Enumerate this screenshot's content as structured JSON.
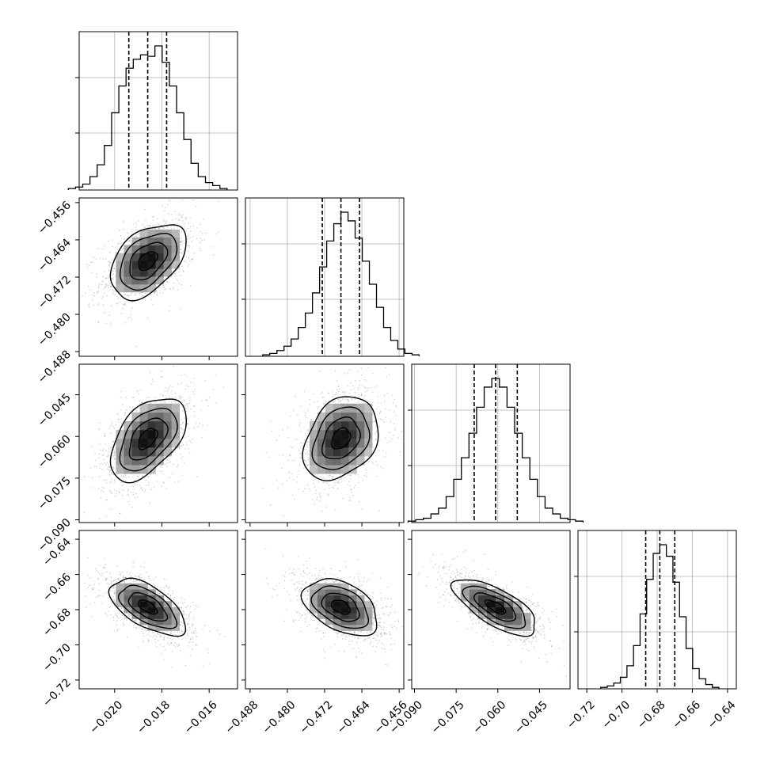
{
  "chart_data": {
    "type": "corner",
    "n_params": 4,
    "parameters": [
      {
        "range": [
          -0.0215,
          -0.0148
        ],
        "ticks": [
          -0.02,
          -0.018,
          -0.016
        ],
        "tick_labels": [
          "−0.020",
          "−0.018",
          "−0.016"
        ],
        "median": -0.0186,
        "quantiles": [
          -0.0194,
          -0.0178
        ],
        "sigma": 0.0008,
        "histogram": [
          1,
          2,
          4,
          9,
          17,
          30,
          52,
          70,
          82,
          88,
          91,
          90,
          97,
          86,
          70,
          52,
          34,
          18,
          9,
          5,
          3,
          1
        ]
      },
      {
        "range": [
          -0.489,
          -0.455
        ],
        "ticks": [
          -0.488,
          -0.48,
          -0.472,
          -0.464,
          -0.456
        ],
        "tick_labels": [
          "−0.488",
          "−0.480",
          "−0.472",
          "−0.464",
          "−0.456"
        ],
        "median": -0.4685,
        "quantiles": [
          -0.4725,
          -0.4645
        ],
        "sigma": 0.004,
        "histogram": [
          1,
          2,
          4,
          7,
          12,
          20,
          30,
          44,
          62,
          80,
          92,
          100,
          94,
          82,
          66,
          50,
          34,
          20,
          11,
          5,
          2,
          1
        ]
      },
      {
        "range": [
          -0.091,
          -0.034
        ],
        "ticks": [
          -0.09,
          -0.075,
          -0.06,
          -0.045
        ],
        "tick_labels": [
          "−0.090",
          "−0.075",
          "−0.060",
          "−0.045"
        ],
        "ytick_labels": [
          "−0.090",
          "−0.075",
          "−0.060",
          "−0.045"
        ],
        "median": -0.0608,
        "quantiles": [
          -0.0685,
          -0.053
        ],
        "sigma": 0.0075,
        "histogram": [
          1,
          2,
          3,
          6,
          10,
          18,
          30,
          45,
          62,
          80,
          94,
          100,
          94,
          80,
          62,
          45,
          30,
          18,
          10,
          6,
          3,
          2,
          1
        ]
      },
      {
        "range": [
          -0.725,
          -0.635
        ],
        "ticks": [
          -0.72,
          -0.7,
          -0.68,
          -0.66,
          -0.64
        ],
        "tick_labels": [
          "−0.72",
          "−0.70",
          "−0.68",
          "−0.66",
          "−0.64"
        ],
        "median": -0.6785,
        "quantiles": [
          -0.6865,
          -0.67
        ],
        "sigma": 0.008,
        "histogram": [
          1,
          2,
          4,
          8,
          16,
          30,
          52,
          76,
          94,
          100,
          92,
          74,
          50,
          28,
          14,
          7,
          3,
          1
        ]
      }
    ],
    "correlations": {
      "1-0": 0.45,
      "2-0": 0.5,
      "2-1": 0.3,
      "3-0": -0.6,
      "3-1": -0.42,
      "3-2": -0.7
    },
    "colors": {
      "line": "#000000",
      "grid": "#b0b0b0",
      "scatter": "#000000"
    }
  }
}
